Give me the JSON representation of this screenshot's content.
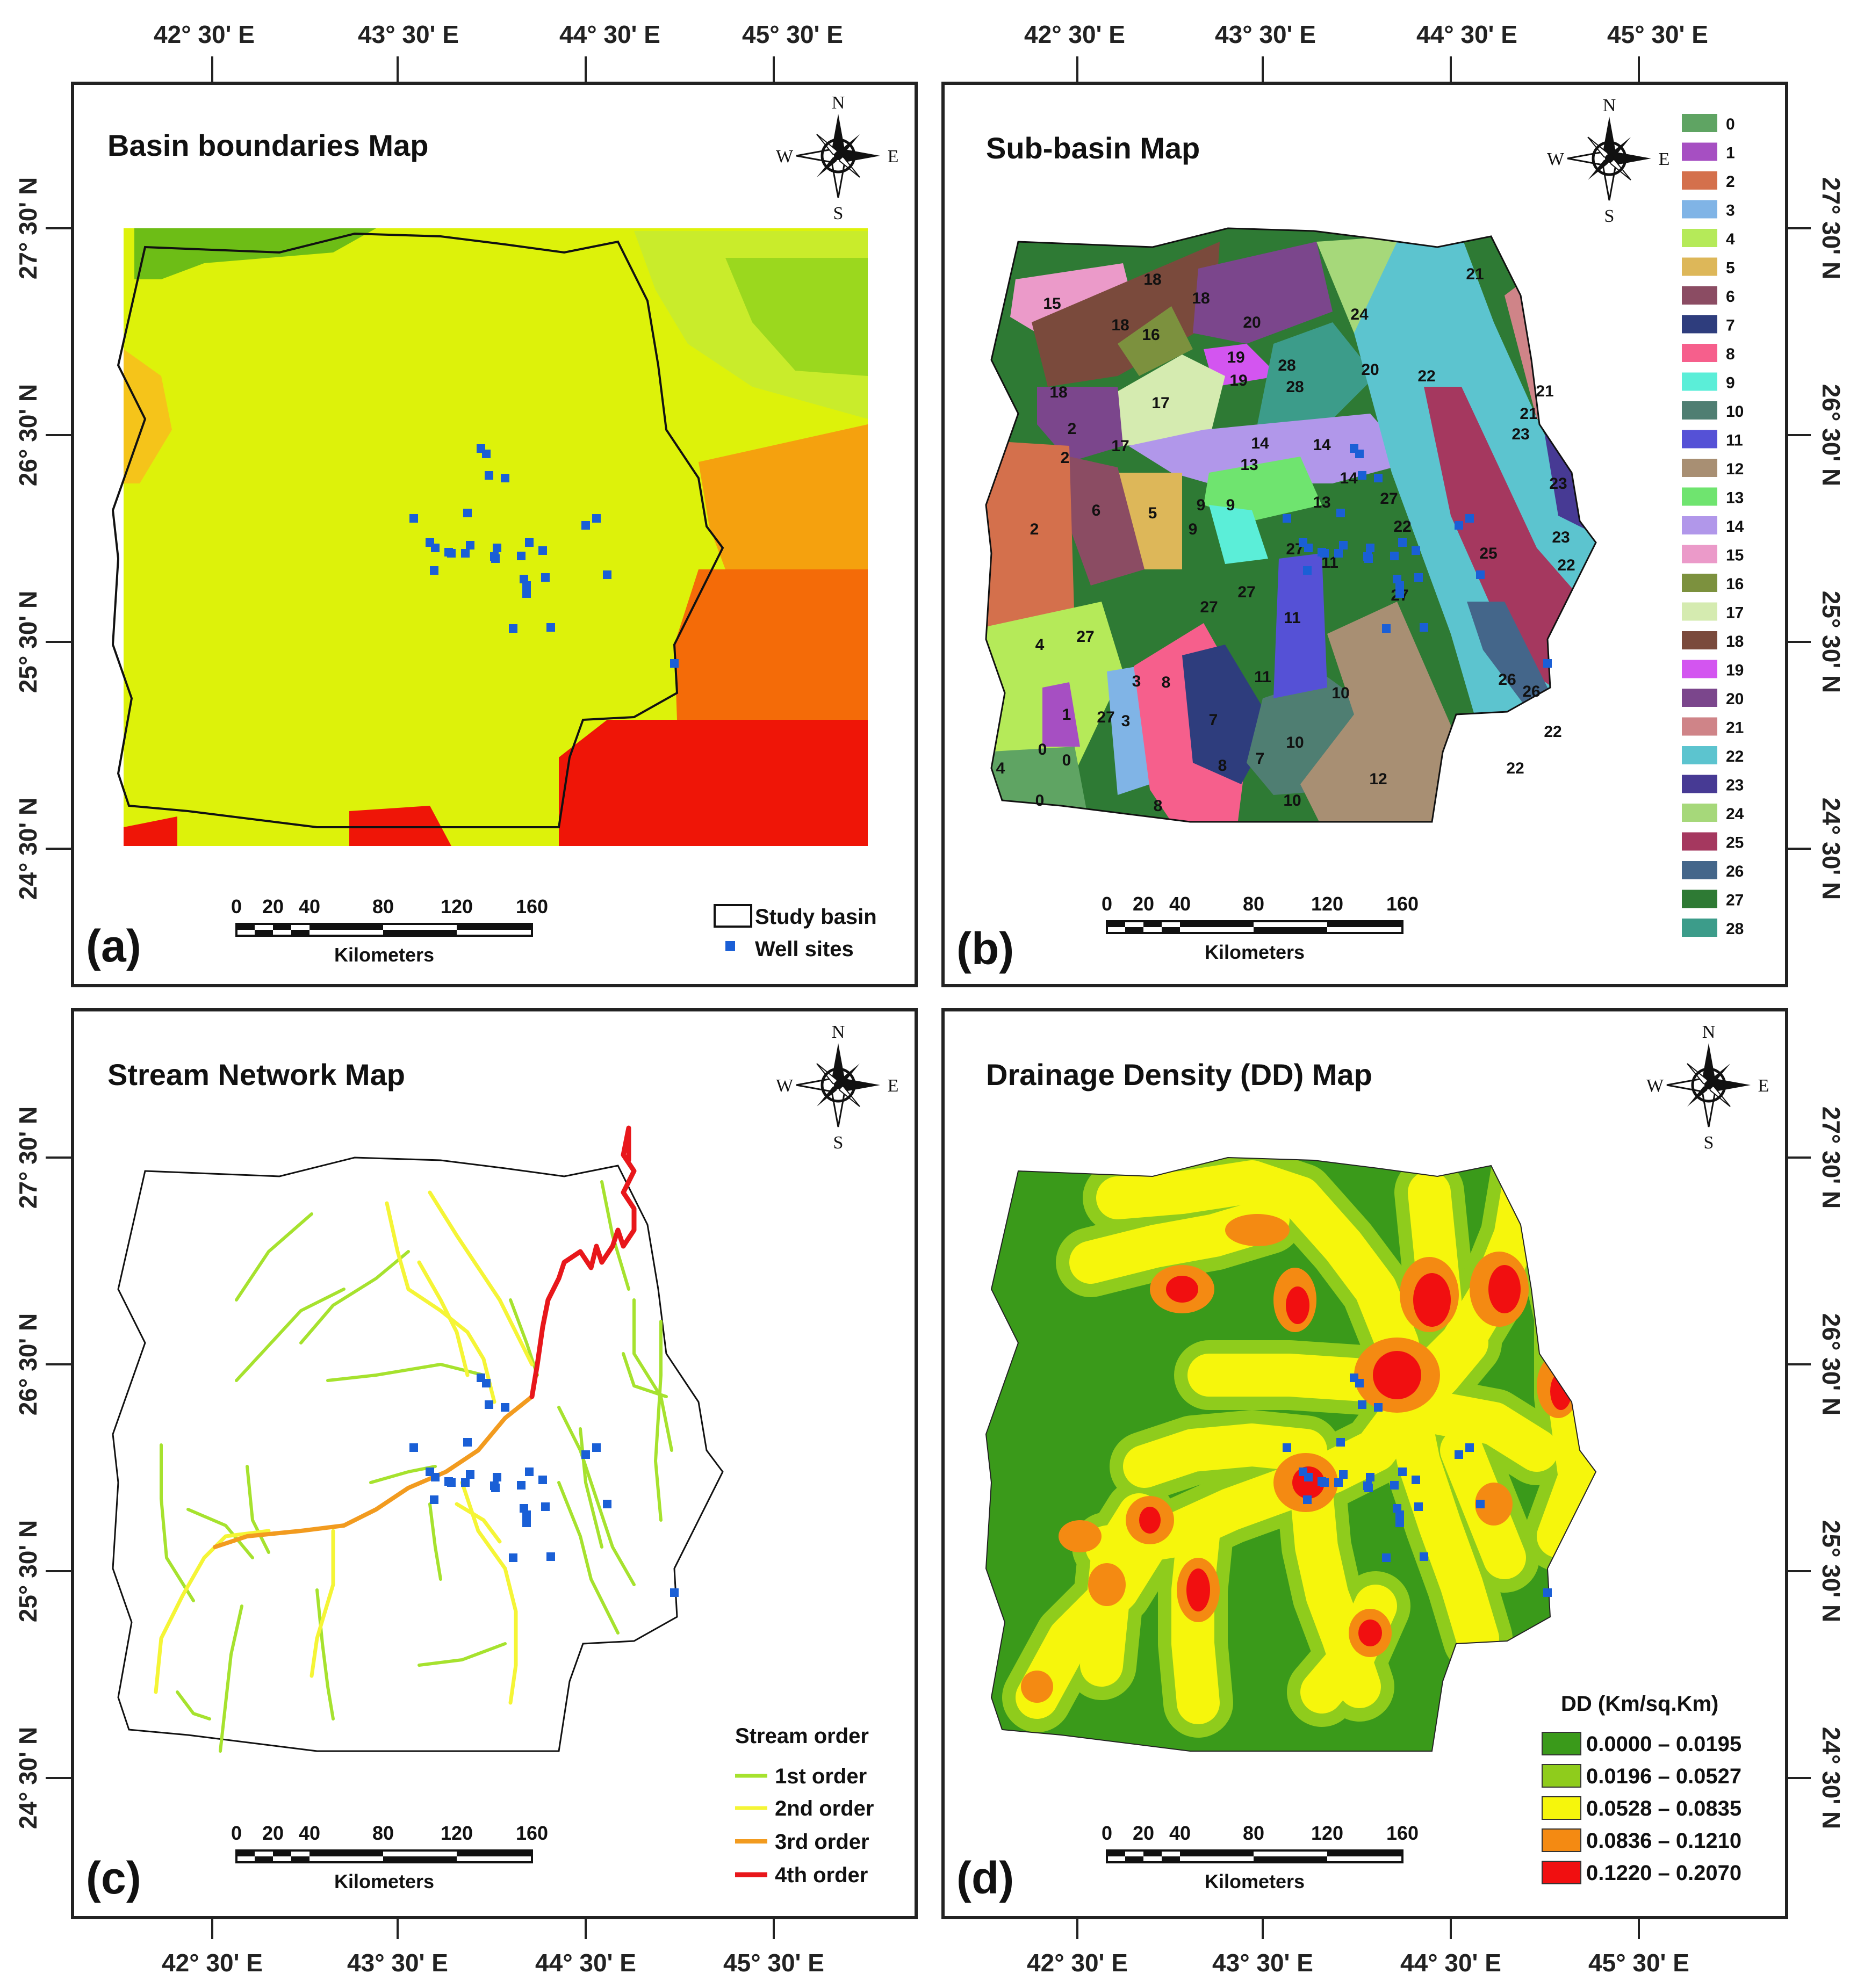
{
  "figure": {
    "top_longitudes": [
      "42° 30' E",
      "43° 30' E",
      "44° 30' E",
      "45° 30' E",
      "42° 30' E",
      "43° 30' E",
      "44° 30' E",
      "45° 30' E"
    ],
    "bottom_longitudes": [
      "42° 30' E",
      "43° 30' E",
      "44° 30' E",
      "45° 30' E",
      "42° 30' E",
      "43° 30' E",
      "44° 30' E",
      "45° 30' E"
    ],
    "left_latitudes": [
      "27° 30' N",
      "26° 30' N",
      "25° 30' N",
      "24° 30' N",
      "27° 30' N",
      "26° 30' N",
      "25° 30' N",
      "24° 30' N"
    ],
    "right_latitudes": [
      "27° 30' N",
      "26° 30' N",
      "25° 30' N",
      "24° 30' N",
      "27° 30' N",
      "26° 30' N",
      "25° 30' N",
      "24° 30' N"
    ]
  },
  "compass": {
    "n": "N",
    "s": "S",
    "e": "E",
    "w": "W"
  },
  "scalebar": {
    "ticks": [
      "0",
      "20",
      "40",
      "80",
      "120",
      "160"
    ],
    "unit": "Kilometers"
  },
  "panels": {
    "a": {
      "letter": "(a)",
      "title": "Basin boundaries  Map",
      "legend": [
        {
          "label": "Study basin",
          "symbol": "box"
        },
        {
          "label": "Well sites",
          "symbol": "square",
          "color": "#1a5fd6"
        }
      ]
    },
    "b": {
      "letter": "(b)",
      "title": "Sub-basin Map",
      "classes": [
        {
          "id": "0",
          "color": "#5fa463"
        },
        {
          "id": "1",
          "color": "#a64fc2"
        },
        {
          "id": "2",
          "color": "#d4704c"
        },
        {
          "id": "3",
          "color": "#80b4e6"
        },
        {
          "id": "4",
          "color": "#b5ea59"
        },
        {
          "id": "5",
          "color": "#ddb759"
        },
        {
          "id": "6",
          "color": "#8b4c63"
        },
        {
          "id": "7",
          "color": "#2e3d7d"
        },
        {
          "id": "8",
          "color": "#f65f8c"
        },
        {
          "id": "9",
          "color": "#5beed8"
        },
        {
          "id": "10",
          "color": "#4f7e72"
        },
        {
          "id": "11",
          "color": "#5551d6"
        },
        {
          "id": "12",
          "color": "#a88f73"
        },
        {
          "id": "13",
          "color": "#6fe46f"
        },
        {
          "id": "14",
          "color": "#b197ea"
        },
        {
          "id": "15",
          "color": "#eb9ac9"
        },
        {
          "id": "16",
          "color": "#7c913e"
        },
        {
          "id": "17",
          "color": "#d5ebb0"
        },
        {
          "id": "18",
          "color": "#7a4a3c"
        },
        {
          "id": "19",
          "color": "#d355f0"
        },
        {
          "id": "20",
          "color": "#7b468c"
        },
        {
          "id": "21",
          "color": "#cf8488"
        },
        {
          "id": "22",
          "color": "#5cc4cf"
        },
        {
          "id": "23",
          "color": "#473a94"
        },
        {
          "id": "24",
          "color": "#a6d87a"
        },
        {
          "id": "25",
          "color": "#a5385f"
        },
        {
          "id": "26",
          "color": "#44668a"
        },
        {
          "id": "27",
          "color": "#2e7a34"
        },
        {
          "id": "28",
          "color": "#3c9c8a"
        }
      ]
    },
    "c": {
      "letter": "(c)",
      "title": "Stream Network Map",
      "legend_title": "Stream order",
      "legend": [
        {
          "label": "1st order",
          "color": "#a6e22e"
        },
        {
          "label": "2nd order",
          "color": "#f5f536"
        },
        {
          "label": "3rd order",
          "color": "#f29b1f"
        },
        {
          "label": "4th order",
          "color": "#e8171b"
        }
      ]
    },
    "d": {
      "letter": "(d)",
      "title": "Drainage Density (DD) Map",
      "legend_title": "DD (Km/sq.Km)",
      "legend": [
        {
          "label": "0.0000 – 0.0195",
          "color": "#3a9a1a"
        },
        {
          "label": "0.0196 – 0.0527",
          "color": "#8fcc1c"
        },
        {
          "label": "0.0528 – 0.0835",
          "color": "#f6f60c"
        },
        {
          "label": "0.0836 – 0.1210",
          "color": "#f48a12"
        },
        {
          "label": "0.1220 – 0.2070",
          "color": "#f10f10"
        }
      ]
    }
  }
}
